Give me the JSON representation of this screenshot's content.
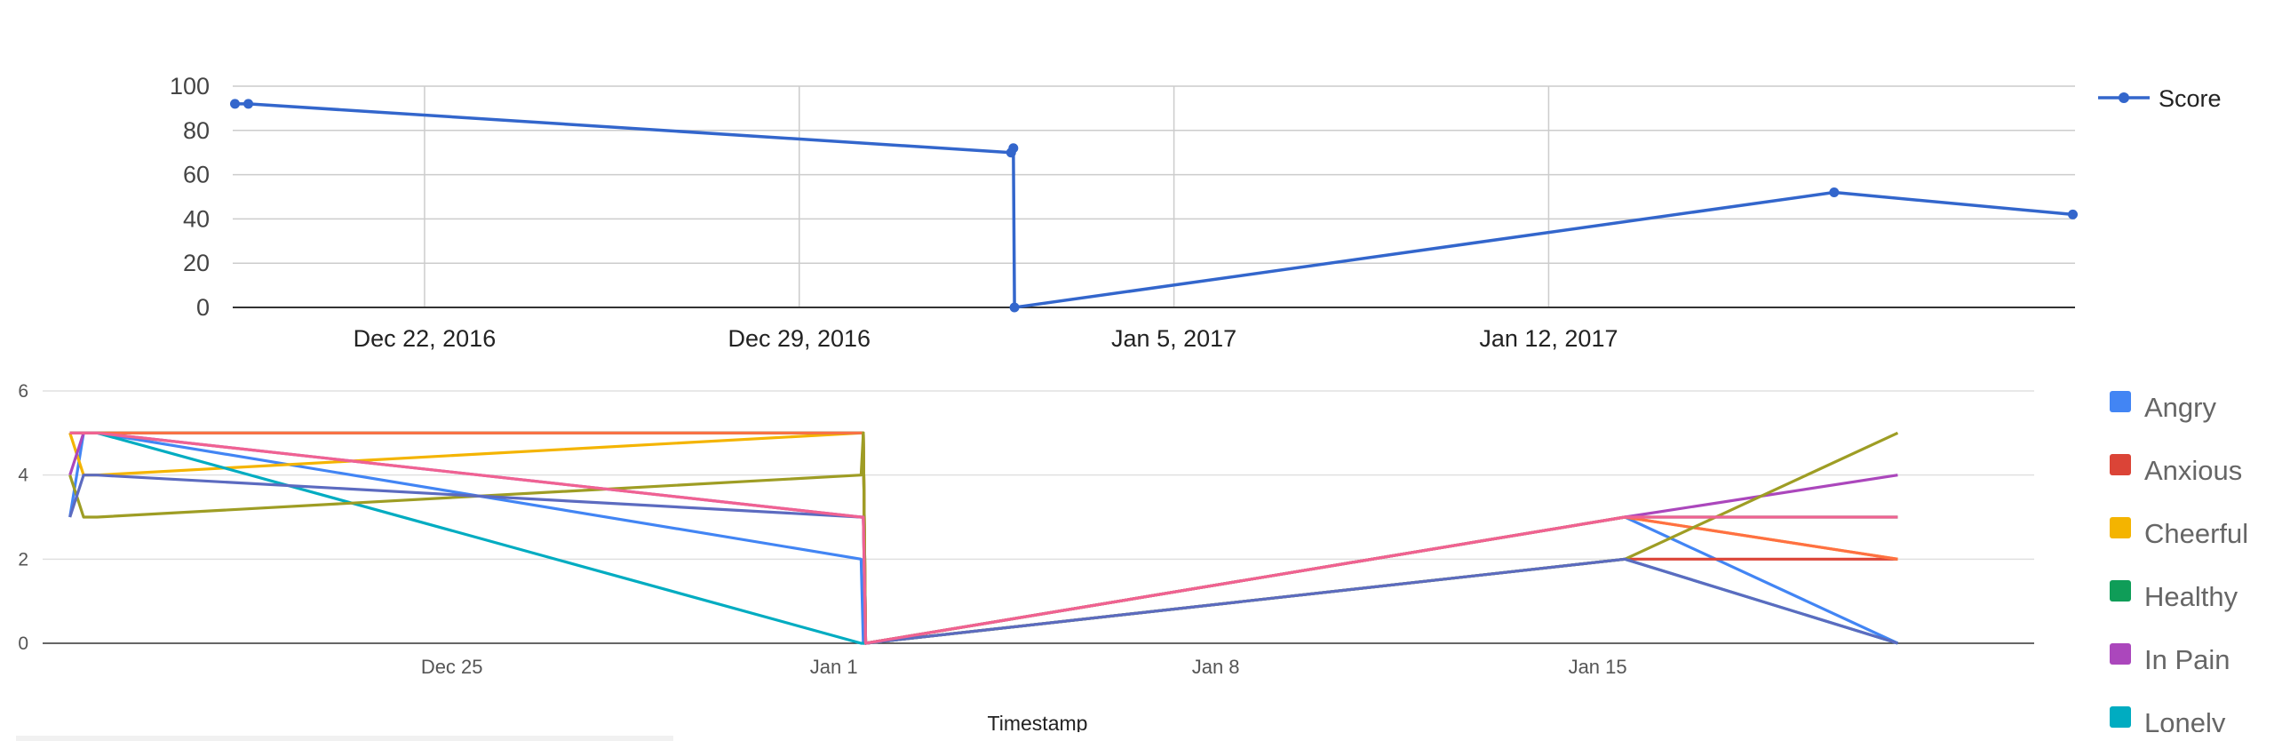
{
  "chart_data": [
    {
      "type": "line",
      "x_type": "date",
      "xlabel": "",
      "ylabel": "",
      "ylim": [
        0,
        100
      ],
      "yticks": [
        0,
        20,
        40,
        60,
        80,
        100
      ],
      "xlim": [
        "2016-12-18T10:00",
        "2017-01-21T20:00"
      ],
      "xticks": [
        {
          "date": "2016-12-22",
          "label": "Dec 22, 2016"
        },
        {
          "date": "2016-12-29",
          "label": "Dec 29, 2016"
        },
        {
          "date": "2017-01-05",
          "label": "Jan 5, 2017"
        },
        {
          "date": "2017-01-12",
          "label": "Jan 12, 2017"
        }
      ],
      "grid": true,
      "legend": "right",
      "series": [
        {
          "name": "Score",
          "color": "#3366cc",
          "points": [
            {
              "x": "2016-12-18T11:00",
              "y": 92
            },
            {
              "x": "2016-12-18T17:00",
              "y": 92
            },
            {
              "x": "2017-01-01T23:00",
              "y": 70
            },
            {
              "x": "2017-01-02T00:00",
              "y": 72
            },
            {
              "x": "2017-01-02T00:30",
              "y": 0
            },
            {
              "x": "2017-01-17T08:00",
              "y": 52
            },
            {
              "x": "2017-01-21T19:00",
              "y": 42
            }
          ]
        }
      ]
    },
    {
      "type": "line",
      "x_type": "date",
      "xlabel": "Timestamp",
      "ylabel": "",
      "ylim": [
        0,
        6
      ],
      "yticks": [
        0,
        2,
        4,
        6
      ],
      "xlim": [
        "2016-12-17T12:00",
        "2017-01-23T00:00"
      ],
      "xticks": [
        {
          "date": "2016-12-25",
          "label": "Dec 25"
        },
        {
          "date": "2017-01-01",
          "label": "Jan 1"
        },
        {
          "date": "2017-01-08",
          "label": "Jan 8"
        },
        {
          "date": "2017-01-15",
          "label": "Jan 15"
        }
      ],
      "grid": true,
      "legend": "right",
      "x": [
        "2016-12-18T00:00",
        "2016-12-18T06:00",
        "2016-12-18T12:00",
        "2017-01-01T12:00",
        "2017-01-01T13:00",
        "2017-01-01T14:00",
        "2017-01-15T12:00",
        "2017-01-20T12:00"
      ],
      "series": [
        {
          "name": "Angry",
          "color": "#4285f4",
          "values": [
            3,
            5,
            5,
            2,
            0,
            0,
            3,
            0
          ]
        },
        {
          "name": "Anxious",
          "color": "#db4437",
          "values": [
            5,
            5,
            5,
            5,
            5,
            0,
            2,
            2
          ]
        },
        {
          "name": "Cheerful",
          "color": "#f4b400",
          "values": [
            5,
            4,
            4,
            5,
            5,
            0,
            3,
            2
          ]
        },
        {
          "name": "Healthy",
          "color": "#0f9d58",
          "values": [
            5,
            5,
            5,
            5,
            5,
            0,
            3,
            3
          ]
        },
        {
          "name": "In Pain",
          "color": "#ab47bc",
          "values": [
            4,
            5,
            5,
            3,
            3,
            0,
            3,
            4
          ]
        },
        {
          "name": "Lonely",
          "color": "#00acc1",
          "values": [
            5,
            5,
            5,
            0,
            0,
            0,
            2,
            0
          ]
        },
        {
          "name": "",
          "color": "#ff7043",
          "values": [
            5,
            5,
            5,
            5,
            5,
            0,
            3,
            2
          ]
        },
        {
          "name": "",
          "color": "#9e9d24",
          "values": [
            4,
            3,
            3,
            4,
            5,
            0,
            2,
            5
          ]
        },
        {
          "name": "",
          "color": "#5c6bc0",
          "values": [
            3,
            4,
            4,
            3,
            3,
            0,
            2,
            0
          ]
        },
        {
          "name": "",
          "color": "#f06292",
          "values": [
            5,
            5,
            5,
            3,
            3,
            0,
            3,
            3
          ]
        }
      ]
    }
  ]
}
